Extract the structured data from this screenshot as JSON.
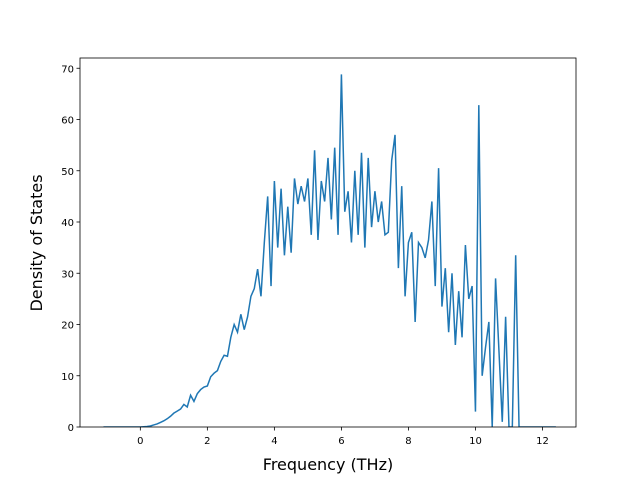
{
  "chart_data": {
    "type": "line",
    "xlabel": "Frequency (THz)",
    "ylabel": "Density of States",
    "x": [
      -1.1,
      -1.0,
      -0.9,
      -0.8,
      -0.7,
      -0.6,
      -0.5,
      -0.4,
      -0.3,
      -0.2,
      -0.1,
      0.0,
      0.1,
      0.2,
      0.3,
      0.4,
      0.5,
      0.6,
      0.7,
      0.8,
      0.9,
      1.0,
      1.1,
      1.2,
      1.3,
      1.4,
      1.5,
      1.6,
      1.7,
      1.8,
      1.9,
      2.0,
      2.1,
      2.2,
      2.3,
      2.4,
      2.5,
      2.6,
      2.7,
      2.8,
      2.9,
      3.0,
      3.1,
      3.2,
      3.3,
      3.4,
      3.5,
      3.6,
      3.7,
      3.8,
      3.9,
      4.0,
      4.1,
      4.2,
      4.3,
      4.4,
      4.5,
      4.6,
      4.7,
      4.8,
      4.9,
      5.0,
      5.1,
      5.2,
      5.3,
      5.4,
      5.5,
      5.6,
      5.7,
      5.8,
      5.9,
      6.0,
      6.1,
      6.2,
      6.3,
      6.4,
      6.5,
      6.6,
      6.7,
      6.8,
      6.9,
      7.0,
      7.1,
      7.2,
      7.3,
      7.4,
      7.5,
      7.6,
      7.7,
      7.8,
      7.9,
      8.0,
      8.1,
      8.2,
      8.3,
      8.4,
      8.5,
      8.6,
      8.7,
      8.8,
      8.9,
      9.0,
      9.1,
      9.2,
      9.3,
      9.4,
      9.5,
      9.6,
      9.7,
      9.8,
      9.9,
      10.0,
      10.1,
      10.2,
      10.3,
      10.4,
      10.5,
      10.6,
      10.7,
      10.8,
      10.9,
      11.0,
      11.1,
      11.2,
      11.3,
      11.4,
      11.5,
      11.6,
      11.7,
      11.8,
      11.9,
      12.0,
      12.1,
      12.2,
      12.3,
      12.4
    ],
    "series": [
      {
        "color": "#1f77b4",
        "values": [
          0,
          0,
          0,
          0,
          0,
          0,
          0,
          0,
          0,
          0,
          0,
          0,
          0.05,
          0.1,
          0.2,
          0.4,
          0.6,
          0.9,
          1.2,
          1.6,
          2.1,
          2.7,
          3.1,
          3.5,
          4.4,
          3.9,
          6.2,
          5.0,
          6.5,
          7.3,
          7.8,
          8.0,
          9.8,
          10.5,
          11.0,
          12.8,
          14.0,
          13.8,
          17.5,
          20.0,
          18.5,
          22.0,
          19.0,
          21.5,
          25.5,
          27.0,
          30.8,
          25.5,
          36.0,
          45.0,
          27.5,
          48.0,
          35.0,
          46.5,
          33.5,
          43.0,
          34.0,
          48.5,
          43.5,
          47.0,
          44.0,
          48.5,
          37.5,
          54.0,
          36.5,
          48.0,
          44.0,
          52.5,
          40.5,
          54.5,
          37.5,
          68.8,
          42.0,
          46.0,
          36.0,
          50.0,
          37.5,
          53.5,
          35.0,
          52.5,
          39.0,
          46.0,
          40.0,
          44.0,
          37.5,
          38.0,
          52.0,
          57.0,
          31.0,
          47.0,
          25.5,
          36.0,
          38.0,
          20.5,
          36.0,
          35.0,
          33.0,
          36.5,
          44.0,
          27.5,
          50.5,
          23.5,
          31.0,
          18.5,
          30.0,
          16.0,
          26.5,
          17.5,
          35.5,
          25.0,
          27.5,
          3.0,
          62.8,
          10.0,
          15.5,
          20.5,
          0,
          29.0,
          15.0,
          1.0,
          21.5,
          0,
          0,
          33.5,
          0,
          0,
          0,
          0,
          0,
          0,
          0,
          0,
          0,
          0,
          0,
          0
        ]
      }
    ],
    "xlim": [
      -1.8,
      13.0
    ],
    "ylim": [
      0,
      72
    ],
    "xticks": [
      0,
      2,
      4,
      6,
      8,
      10,
      12
    ],
    "yticks": [
      0,
      10,
      20,
      30,
      40,
      50,
      60,
      70
    ]
  }
}
